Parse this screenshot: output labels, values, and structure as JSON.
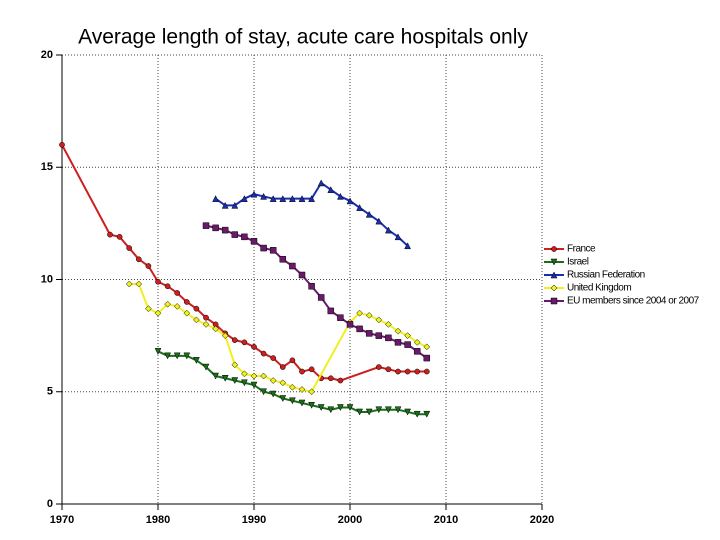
{
  "chart_data": {
    "type": "line",
    "title": "Average length of stay, acute care hospitals only",
    "xlim": [
      1970,
      2020
    ],
    "xticks": [
      1970,
      1980,
      1990,
      2000,
      2010,
      2020
    ],
    "ylim": [
      0,
      20
    ],
    "yticks": [
      0,
      5,
      10,
      15,
      20
    ],
    "grid": true,
    "legend": "right",
    "series": [
      {
        "name": "France",
        "color": "#cc1f1f",
        "marker": "circle",
        "x": [
          1970,
          1975,
          1976,
          1977,
          1978,
          1979,
          1980,
          1981,
          1982,
          1983,
          1984,
          1985,
          1986,
          1987,
          1988,
          1989,
          1990,
          1991,
          1992,
          1993,
          1994,
          1995,
          1996,
          1997,
          1998,
          1999,
          2003,
          2004,
          2005,
          2006,
          2007,
          2008
        ],
        "values": [
          16.0,
          12.0,
          11.9,
          11.4,
          10.9,
          10.6,
          9.9,
          9.7,
          9.4,
          9.0,
          8.7,
          8.3,
          8.0,
          7.6,
          7.3,
          7.2,
          7.0,
          6.7,
          6.5,
          6.1,
          6.4,
          5.9,
          6.0,
          5.6,
          5.6,
          5.5,
          6.1,
          6.0,
          5.9,
          5.9,
          5.9,
          5.9
        ]
      },
      {
        "name": "Israel",
        "color": "#1b6e1b",
        "marker": "triangle-down",
        "x": [
          1980,
          1981,
          1982,
          1983,
          1984,
          1985,
          1986,
          1987,
          1988,
          1989,
          1990,
          1991,
          1992,
          1993,
          1994,
          1995,
          1996,
          1997,
          1998,
          1999,
          2000,
          2001,
          2002,
          2003,
          2004,
          2005,
          2006,
          2007,
          2008
        ],
        "values": [
          6.8,
          6.6,
          6.6,
          6.6,
          6.4,
          6.1,
          5.7,
          5.6,
          5.5,
          5.4,
          5.3,
          5.0,
          4.9,
          4.7,
          4.6,
          4.5,
          4.4,
          4.3,
          4.2,
          4.3,
          4.3,
          4.1,
          4.1,
          4.2,
          4.2,
          4.2,
          4.1,
          4.0,
          4.0
        ]
      },
      {
        "name": "Russian Federation",
        "color": "#1a2fb0",
        "marker": "triangle-up",
        "x": [
          1986,
          1987,
          1988,
          1989,
          1990,
          1991,
          1992,
          1993,
          1994,
          1995,
          1996,
          1997,
          1998,
          1999,
          2000,
          2001,
          2002,
          2003,
          2004,
          2005,
          2006
        ],
        "values": [
          13.6,
          13.3,
          13.3,
          13.6,
          13.8,
          13.7,
          13.6,
          13.6,
          13.6,
          13.6,
          13.6,
          14.3,
          14.0,
          13.7,
          13.5,
          13.2,
          12.9,
          12.6,
          12.2,
          11.9,
          11.5
        ]
      },
      {
        "name": "United Kingdom",
        "color": "#f0f020",
        "marker": "diamond",
        "x": [
          1977,
          1978,
          1979,
          1980,
          1981,
          1982,
          1983,
          1984,
          1985,
          1986,
          1987,
          1988,
          1989,
          1990,
          1991,
          1992,
          1993,
          1994,
          1995,
          1996,
          2000,
          2001,
          2002,
          2003,
          2004,
          2005,
          2006,
          2007,
          2008
        ],
        "values": [
          9.8,
          9.8,
          8.7,
          8.5,
          8.9,
          8.8,
          8.5,
          8.2,
          8.0,
          7.8,
          7.5,
          6.2,
          5.8,
          5.7,
          5.7,
          5.5,
          5.4,
          5.2,
          5.1,
          5.0,
          8.1,
          8.5,
          8.4,
          8.2,
          8.0,
          7.7,
          7.5,
          7.2,
          7.0
        ]
      },
      {
        "name": "EU members since 2004 or 2007",
        "color": "#6a1a6a",
        "marker": "square",
        "x": [
          1985,
          1986,
          1987,
          1988,
          1989,
          1990,
          1991,
          1992,
          1993,
          1994,
          1995,
          1996,
          1997,
          1998,
          1999,
          2000,
          2001,
          2002,
          2003,
          2004,
          2005,
          2006,
          2007,
          2008
        ],
        "values": [
          12.4,
          12.3,
          12.2,
          12.0,
          11.9,
          11.7,
          11.4,
          11.3,
          10.9,
          10.6,
          10.2,
          9.7,
          9.2,
          8.6,
          8.3,
          8.0,
          7.8,
          7.6,
          7.5,
          7.4,
          7.2,
          7.1,
          6.8,
          6.5
        ]
      }
    ]
  }
}
